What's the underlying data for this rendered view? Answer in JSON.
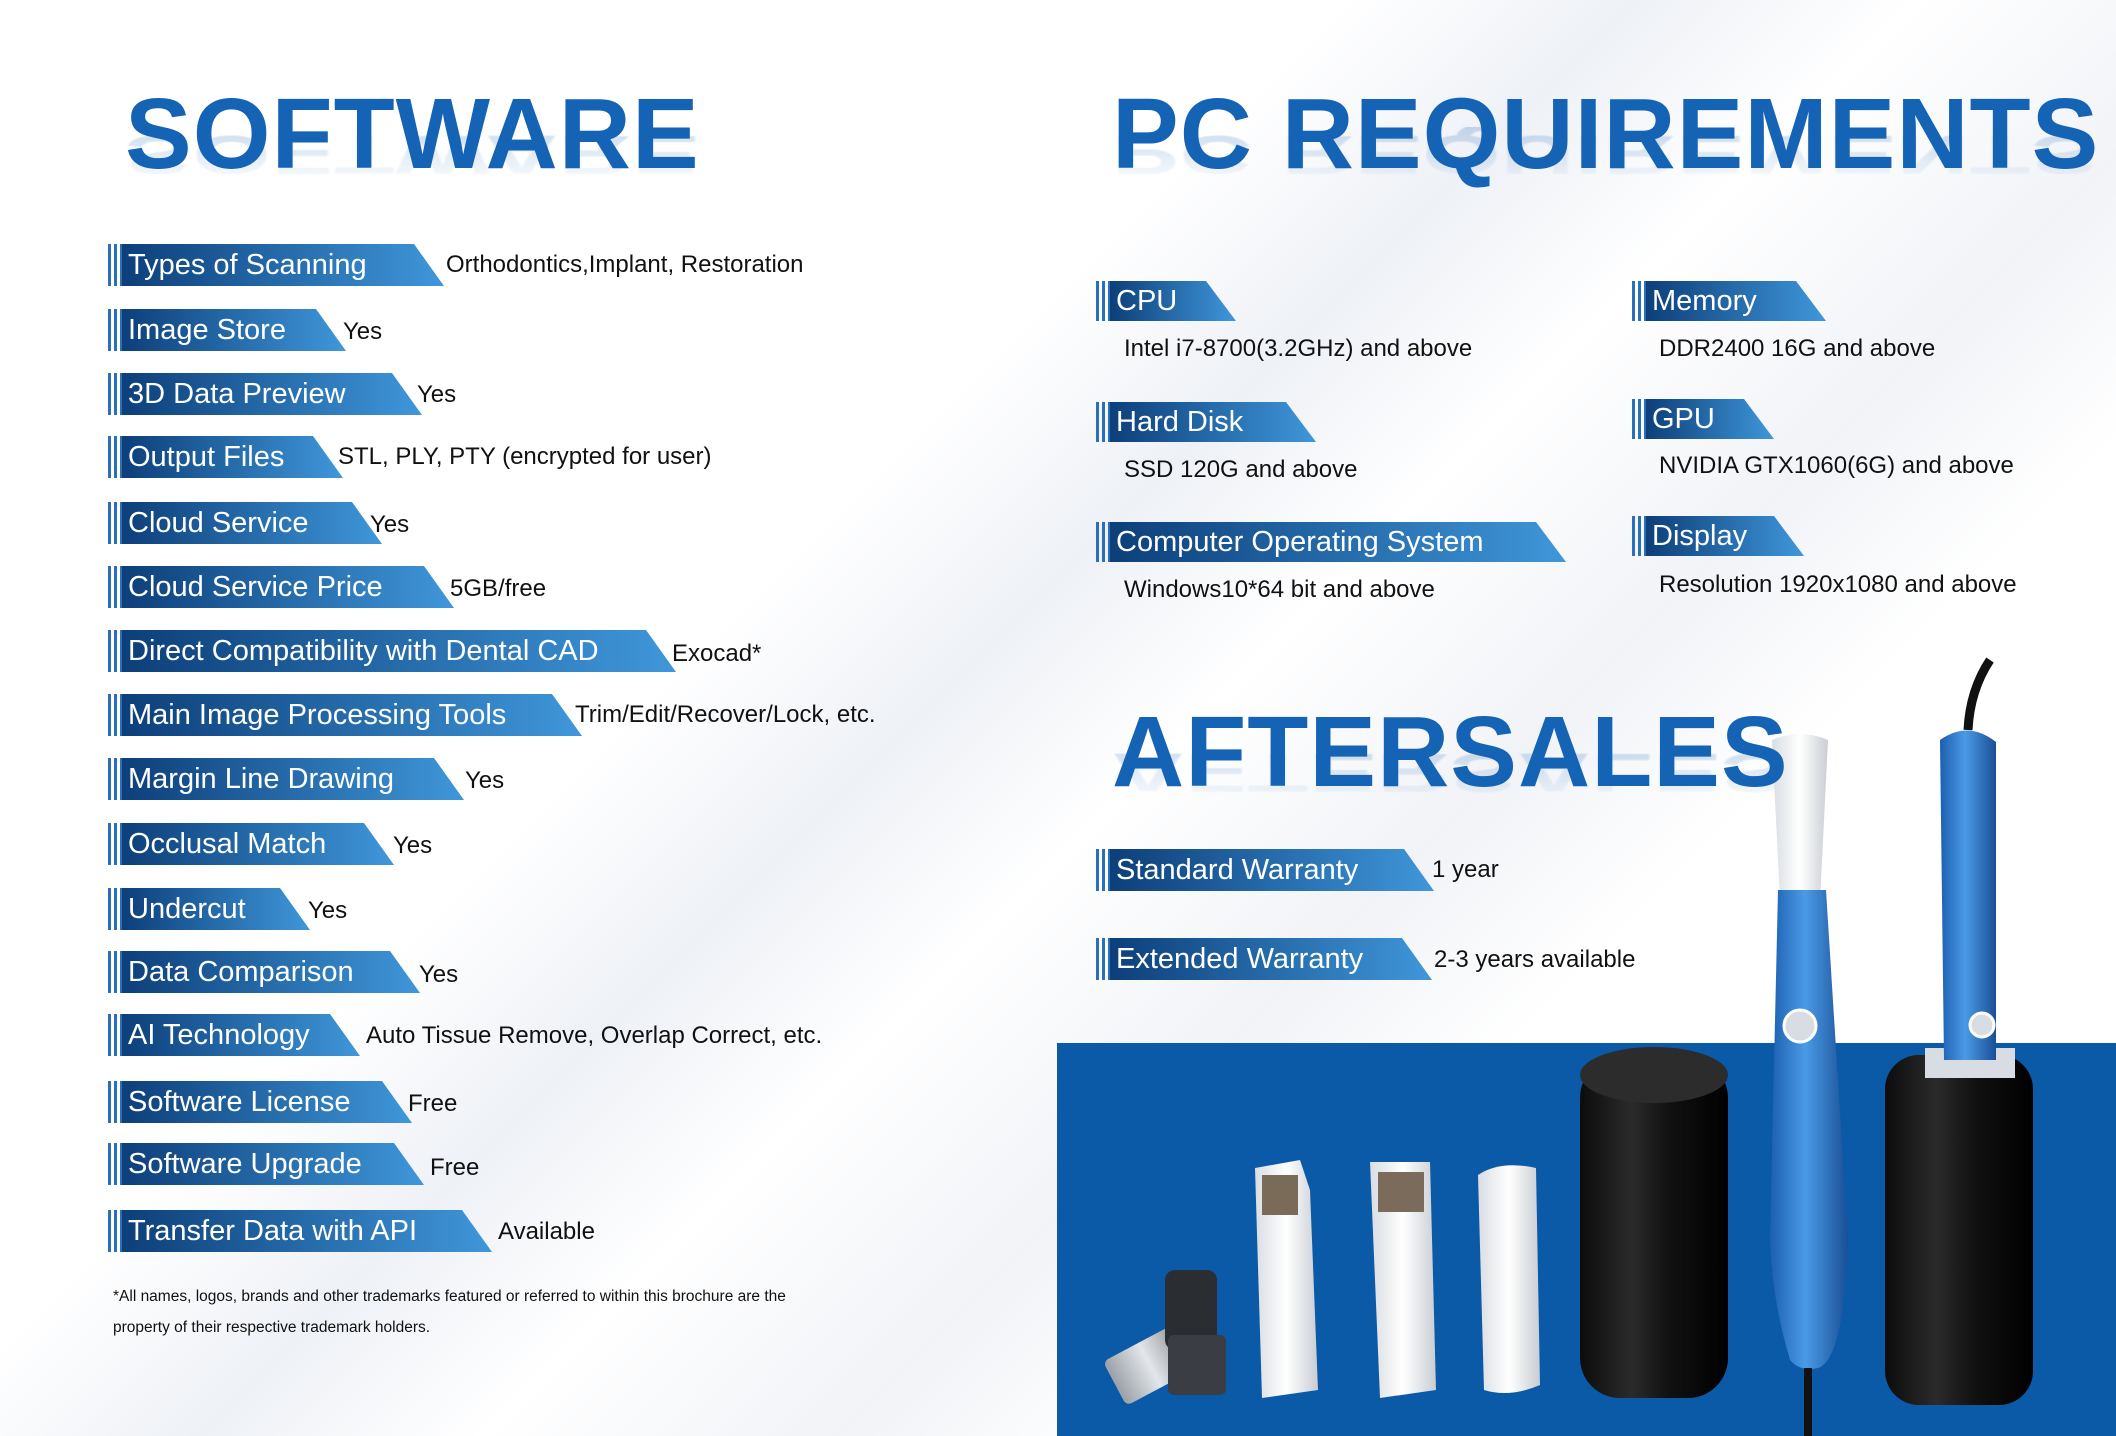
{
  "software": {
    "title": "SOFTWARE",
    "rows": [
      {
        "label": "Types of Scanning",
        "value": "Orthodontics,Implant, Restoration"
      },
      {
        "label": "Image Store",
        "value": "Yes"
      },
      {
        "label": "3D Data Preview",
        "value": "Yes"
      },
      {
        "label": "Output Files",
        "value": "STL, PLY, PTY (encrypted for user)"
      },
      {
        "label": "Cloud Service",
        "value": "Yes"
      },
      {
        "label": "Cloud Service Price",
        "value": "5GB/free"
      },
      {
        "label": "Direct Compatibility with Dental CAD",
        "value": "Exocad*"
      },
      {
        "label": "Main Image Processing Tools",
        "value": "Trim/Edit/Recover/Lock, etc."
      },
      {
        "label": "Margin Line Drawing",
        "value": "Yes"
      },
      {
        "label": "Occlusal Match",
        "value": "Yes"
      },
      {
        "label": "Undercut",
        "value": "Yes"
      },
      {
        "label": "Data Comparison",
        "value": "Yes"
      },
      {
        "label": "AI Technology",
        "value": "Auto Tissue Remove, Overlap Correct, etc."
      },
      {
        "label": "Software License",
        "value": "Free"
      },
      {
        "label": "Software Upgrade",
        "value": "Free"
      },
      {
        "label": "Transfer Data with API",
        "value": "Available"
      }
    ],
    "footnote_line1": "*All names, logos, brands and other trademarks featured or referred to within this brochure are the",
    "footnote_line2": "property of their respective trademark holders."
  },
  "pc": {
    "title": "PC REQUIREMENTS",
    "items": [
      {
        "label": "CPU",
        "value": "Intel i7-8700(3.2GHz) and above"
      },
      {
        "label": "Memory",
        "value": "DDR2400 16G and above"
      },
      {
        "label": "Hard Disk",
        "value": "SSD 120G and above"
      },
      {
        "label": "GPU",
        "value": "NVIDIA GTX1060(6G) and above"
      },
      {
        "label": "Computer Operating System",
        "value": "Windows10*64 bit and above"
      },
      {
        "label": "Display",
        "value": "Resolution 1920x1080 and above"
      }
    ]
  },
  "aftersales": {
    "title": "AFTERSALES",
    "items": [
      {
        "label": "Standard Warranty",
        "value": "1 year"
      },
      {
        "label": "Extended Warranty",
        "value": "2-3 years available"
      }
    ]
  },
  "colors": {
    "title_blue": "#1463b4",
    "tag_dark": "#0d3f7a",
    "tag_light": "#3f97da",
    "panel_blue": "#0a5aa8"
  }
}
